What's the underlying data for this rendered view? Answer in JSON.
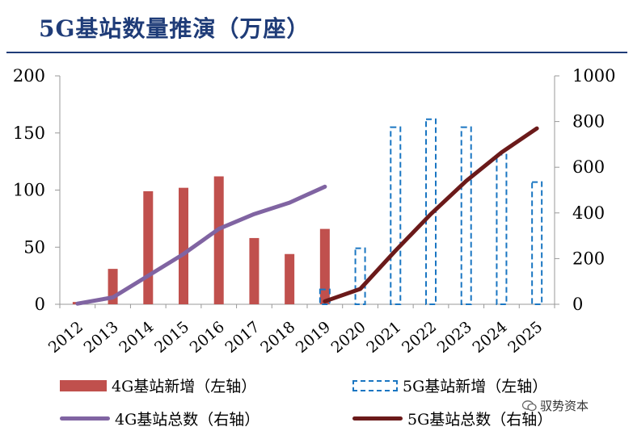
{
  "title": "5G基站数量推演（万座）",
  "chart_data": {
    "type": "bar",
    "categories": [
      "2012",
      "2013",
      "2014",
      "2015",
      "2016",
      "2017",
      "2018",
      "2019",
      "2020",
      "2021",
      "2022",
      "2023",
      "2024",
      "2025"
    ],
    "left_axis": {
      "ylim": [
        0,
        200
      ],
      "ticks": [
        "0",
        "50",
        "100",
        "150",
        "200"
      ]
    },
    "right_axis": {
      "ylim": [
        0,
        1000
      ],
      "ticks": [
        "0",
        "200",
        "400",
        "600",
        "800",
        "1000"
      ]
    },
    "series": [
      {
        "name": "4G基站新增（左轴）",
        "kind": "bar",
        "axis": "left",
        "color": "#c0504d",
        "values": [
          2,
          31,
          99,
          102,
          112,
          58,
          44,
          66,
          null,
          null,
          null,
          null,
          null,
          null
        ]
      },
      {
        "name": "5G基站新增（左轴）",
        "kind": "bar-dashed",
        "axis": "left",
        "color": "#1a76c2",
        "values": [
          null,
          null,
          null,
          null,
          null,
          null,
          null,
          13,
          49,
          155,
          162,
          155,
          131,
          107
        ]
      },
      {
        "name": "4G基站总数（右轴）",
        "kind": "line",
        "axis": "right",
        "color": "#8064a2",
        "values": [
          3,
          30,
          125,
          220,
          330,
          395,
          445,
          515,
          null,
          null,
          null,
          null,
          null,
          null
        ]
      },
      {
        "name": "5G基站总数（右轴）",
        "kind": "line",
        "axis": "right",
        "color": "#6b1a1a",
        "values": [
          null,
          null,
          null,
          null,
          null,
          null,
          null,
          13,
          67,
          235,
          395,
          540,
          665,
          770
        ]
      }
    ]
  },
  "legend": {
    "bar4g": "4G基站新增（左轴）",
    "bar5g": "5G基站新增（左轴）",
    "line4g": "4G基站总数（右轴）",
    "line5g": "5G基站总数（右轴）"
  },
  "watermark": "驭势资本"
}
